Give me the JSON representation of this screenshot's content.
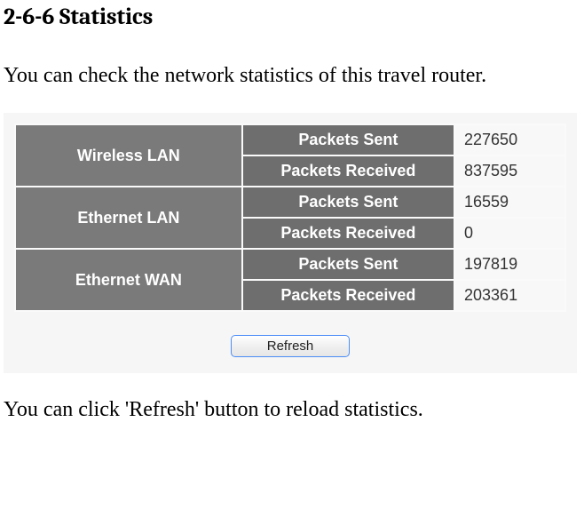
{
  "heading": "2-6-6 Statistics",
  "intro": "You can check the network statistics of this travel router.",
  "outro": "You can click 'Refresh' button to reload statistics.",
  "table": {
    "rows": [
      {
        "iface": "Wireless LAN",
        "metric": "Packets Sent",
        "value": "227650"
      },
      {
        "iface": "Wireless LAN",
        "metric": "Packets Received",
        "value": "837595"
      },
      {
        "iface": "Ethernet LAN",
        "metric": "Packets Sent",
        "value": "16559"
      },
      {
        "iface": "Ethernet LAN",
        "metric": "Packets Received",
        "value": "0"
      },
      {
        "iface": "Ethernet WAN",
        "metric": "Packets Sent",
        "value": "197819"
      },
      {
        "iface": "Ethernet WAN",
        "metric": "Packets Received",
        "value": "203361"
      }
    ]
  },
  "buttons": {
    "refresh": "Refresh"
  },
  "style": {
    "iface_bg": "#7a7a7a",
    "metric_bg": "#6e6e6e",
    "panel_bg": "#f6f6f6",
    "border_color": "#fafafa",
    "button_border": "#4b8df8"
  }
}
